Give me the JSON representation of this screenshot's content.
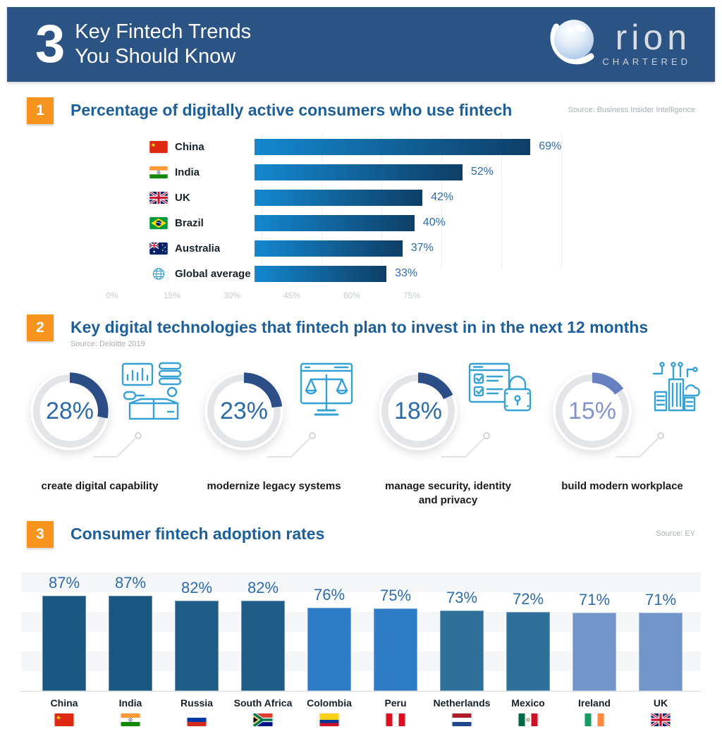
{
  "header": {
    "count": "3",
    "title_line1": "Key Fintech Trends",
    "title_line2": "You Should Know",
    "logo_brand": "rion",
    "logo_sub": "CHARTERED"
  },
  "colors": {
    "header_bg": "#2B5485",
    "accent_orange": "#F7941E",
    "title_blue": "#1E5F97",
    "value_blue": "#2D6CA8",
    "bar_gradient_start": "#1488CF",
    "bar_gradient_end": "#0E3E66",
    "icon_blue": "#36A2D3"
  },
  "section1": {
    "badge": "1",
    "title": "Percentage of digitally active consumers who use fintech",
    "source": "Source: Business Insider Intelligence",
    "bars": [
      {
        "country": "China",
        "value": 69,
        "label": "69%",
        "flag": "flag-china-icon"
      },
      {
        "country": "India",
        "value": 52,
        "label": "52%",
        "flag": "flag-india-icon"
      },
      {
        "country": "UK",
        "value": 42,
        "label": "42%",
        "flag": "flag-uk-icon"
      },
      {
        "country": "Brazil",
        "value": 40,
        "label": "40%",
        "flag": "flag-brazil-icon"
      },
      {
        "country": "Australia",
        "value": 37,
        "label": "37%",
        "flag": "flag-australia-icon"
      },
      {
        "country": "Global average",
        "value": 33,
        "label": "33%",
        "flag": "globe-icon"
      }
    ],
    "ticks": [
      "0%",
      "15%",
      "30%",
      "45%",
      "60%",
      "75%"
    ]
  },
  "section2": {
    "badge": "2",
    "title": "Key digital technologies that fintech plan to invest in in the next 12 months",
    "source": "Source: Deloitte 2019",
    "donuts": [
      {
        "value": 28,
        "label": "28%",
        "caption": "create digital capability",
        "icon": "box-analytics-icon",
        "arc_color": "#2B4E87",
        "text_color": "#2C6BA5"
      },
      {
        "value": 23,
        "label": "23%",
        "caption": "modernize legacy systems",
        "icon": "legacy-scale-icon",
        "arc_color": "#2B4E87",
        "text_color": "#2C6BA5"
      },
      {
        "value": 18,
        "label": "18%",
        "caption": "manage security, identity\nand privacy",
        "icon": "checklist-lock-icon",
        "arc_color": "#2B4E87",
        "text_color": "#2C6BA5"
      },
      {
        "value": 15,
        "label": "15%",
        "caption": "build modern workplace",
        "icon": "smart-building-icon",
        "arc_color": "#6680C2",
        "text_color": "#8494CC"
      }
    ]
  },
  "section3": {
    "badge": "3",
    "title": "Consumer fintech adoption rates",
    "source": "Source: EY",
    "bars": [
      {
        "country": "China",
        "value": 87,
        "label": "87%",
        "color": "#1A567F",
        "flag": "flag-china-icon"
      },
      {
        "country": "India",
        "value": 87,
        "label": "87%",
        "color": "#1A567F",
        "flag": "flag-india-icon"
      },
      {
        "country": "Russia",
        "value": 82,
        "label": "82%",
        "color": "#1F5D86",
        "flag": "flag-russia-icon"
      },
      {
        "country": "South Africa",
        "value": 82,
        "label": "82%",
        "color": "#1F5D86",
        "flag": "flag-south-africa-icon"
      },
      {
        "country": "Colombia",
        "value": 76,
        "label": "76%",
        "color": "#2E7CC6",
        "flag": "flag-colombia-icon"
      },
      {
        "country": "Peru",
        "value": 75,
        "label": "75%",
        "color": "#2E7CC6",
        "flag": "flag-peru-icon"
      },
      {
        "country": "Netherlands",
        "value": 73,
        "label": "73%",
        "color": "#2E7099",
        "flag": "flag-netherlands-icon"
      },
      {
        "country": "Mexico",
        "value": 72,
        "label": "72%",
        "color": "#2E7099",
        "flag": "flag-mexico-icon"
      },
      {
        "country": "Ireland",
        "value": 71,
        "label": "71%",
        "color": "#7295C9",
        "flag": "flag-ireland-icon"
      },
      {
        "country": "UK",
        "value": 71,
        "label": "71%",
        "color": "#7295C9",
        "flag": "flag-uk-icon"
      }
    ]
  },
  "chart_data": [
    {
      "type": "bar",
      "orientation": "horizontal",
      "title": "Percentage of digitally active consumers who use fintech",
      "source": "Business Insider Intelligence",
      "categories": [
        "China",
        "India",
        "UK",
        "Brazil",
        "Australia",
        "Global average"
      ],
      "values": [
        69,
        52,
        42,
        40,
        37,
        33
      ],
      "unit": "%",
      "xlim": [
        0,
        75
      ],
      "x_ticks": [
        "0%",
        "15%",
        "30%",
        "45%",
        "60%",
        "75%"
      ],
      "grid": "vertical-faint",
      "legend": "none"
    },
    {
      "type": "pie",
      "variant": "donut-gauges",
      "title": "Key digital technologies that fintech plan to invest in in the next 12 months",
      "source": "Deloitte 2019",
      "categories": [
        "create digital capability",
        "modernize legacy systems",
        "manage security, identity and privacy",
        "build modern workplace"
      ],
      "values": [
        28,
        23,
        18,
        15
      ],
      "unit": "%"
    },
    {
      "type": "bar",
      "orientation": "vertical",
      "title": "Consumer fintech adoption rates",
      "source": "EY",
      "categories": [
        "China",
        "India",
        "Russia",
        "South Africa",
        "Colombia",
        "Peru",
        "Netherlands",
        "Mexico",
        "Ireland",
        "UK"
      ],
      "values": [
        87,
        87,
        82,
        82,
        76,
        75,
        73,
        72,
        71,
        71
      ],
      "unit": "%",
      "ylim": [
        0,
        100
      ],
      "grid": "horizontal-bands",
      "legend": "none"
    }
  ]
}
